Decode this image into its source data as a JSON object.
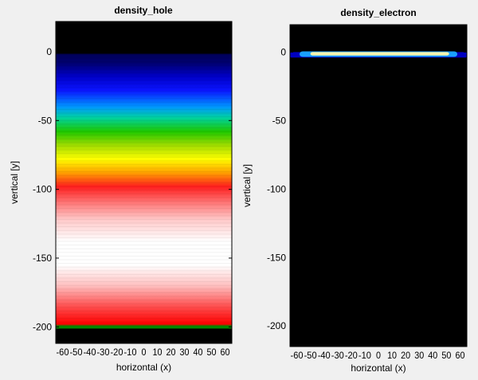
{
  "chart_data": [
    {
      "type": "heatmap",
      "title": "density_hole",
      "xlabel": "horizontal (x)",
      "ylabel": "vertical [y]",
      "xticks": [
        -60,
        -50,
        -40,
        -30,
        -20,
        -10,
        0,
        10,
        20,
        30,
        40,
        50,
        60
      ],
      "yticks": [
        0,
        -50,
        -100,
        -150,
        -200
      ],
      "xlim": [
        -65,
        65
      ],
      "ylim": [
        -212,
        22
      ],
      "field": {
        "y_top": -2,
        "y_bottom": -201,
        "profile_stops": [
          {
            "y": 22,
            "color": "#000000"
          },
          {
            "y": -1,
            "color": "#000000"
          },
          {
            "y": -2,
            "color": "#00005a"
          },
          {
            "y": -8,
            "color": "#00006e"
          },
          {
            "y": -18,
            "color": "#0000c8"
          },
          {
            "y": -28,
            "color": "#0a14ff"
          },
          {
            "y": -40,
            "color": "#0096ff"
          },
          {
            "y": -48,
            "color": "#00d2a0"
          },
          {
            "y": -58,
            "color": "#1ec800"
          },
          {
            "y": -68,
            "color": "#a0dc00"
          },
          {
            "y": -78,
            "color": "#ffff00"
          },
          {
            "y": -88,
            "color": "#ffa000"
          },
          {
            "y": -98,
            "color": "#ff1e1e"
          },
          {
            "y": -110,
            "color": "#ff7878"
          },
          {
            "y": -122,
            "color": "#ffc8c8"
          },
          {
            "y": -138,
            "color": "#ffffff"
          },
          {
            "y": -155,
            "color": "#ffffff"
          },
          {
            "y": -170,
            "color": "#ffc0c0"
          },
          {
            "y": -185,
            "color": "#ff5050"
          },
          {
            "y": -198,
            "color": "#ff0000"
          },
          {
            "y": -199.5,
            "color": "#008a00"
          },
          {
            "y": -201,
            "color": "#008a00"
          },
          {
            "y": -201.5,
            "color": "#000000"
          },
          {
            "y": -212,
            "color": "#000000"
          }
        ]
      }
    },
    {
      "type": "heatmap",
      "title": "density_electron",
      "xlabel": "horizontal (x)",
      "ylabel": "vertical [y]",
      "xticks": [
        -60,
        -50,
        -40,
        -30,
        -20,
        -10,
        0,
        10,
        20,
        30,
        40,
        50,
        60
      ],
      "yticks": [
        0,
        -50,
        -100,
        -150,
        -200
      ],
      "xlim": [
        -65,
        65
      ],
      "ylim": [
        -215,
        20
      ],
      "field": {
        "background": "#000000",
        "band_outer": {
          "y_top": 0,
          "y_bottom": -4,
          "x_min": -65,
          "x_max": 65,
          "color": "#0000c0"
        },
        "band_mid": {
          "y_top": 0.5,
          "y_bottom": -3.5,
          "x_min": -58,
          "x_max": 58,
          "color": "#1aa0ff"
        },
        "band_inner": {
          "y_top": 0,
          "y_bottom": -2.5,
          "x_min": -50,
          "x_max": 52,
          "color": "#f5f5b0"
        }
      }
    }
  ]
}
